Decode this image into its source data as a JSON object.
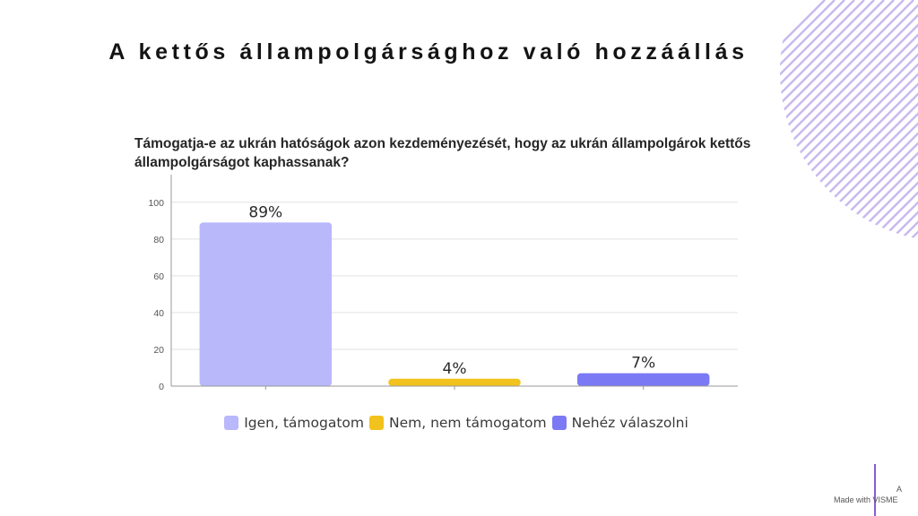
{
  "slide": {
    "title": "A kettős állampolgársághoz való hozzáállás",
    "accent_color": "#c9b9ef",
    "brand_text": "Made with VISME",
    "brand_mark": "A"
  },
  "chart_data": {
    "type": "bar",
    "title": "Támogatja-e az ukrán hatóságok azon kezdeményezését, hogy az ukrán állampolgárok kettős állampolgárságot kaphassanak?",
    "categories": [
      "Igen, támogatom",
      "Nem, nem támogatom",
      "Nehéz válaszolni"
    ],
    "values": [
      89,
      4,
      7
    ],
    "data_labels": [
      "89%",
      "4%",
      "7%"
    ],
    "colors": [
      "#b8b8fb",
      "#f2c21d",
      "#7b79f4"
    ],
    "ylim": [
      0,
      115
    ],
    "yticks": [
      0,
      20,
      40,
      60,
      80,
      100
    ],
    "grid": true,
    "legend_position": "bottom",
    "xlabel": "",
    "ylabel": ""
  }
}
